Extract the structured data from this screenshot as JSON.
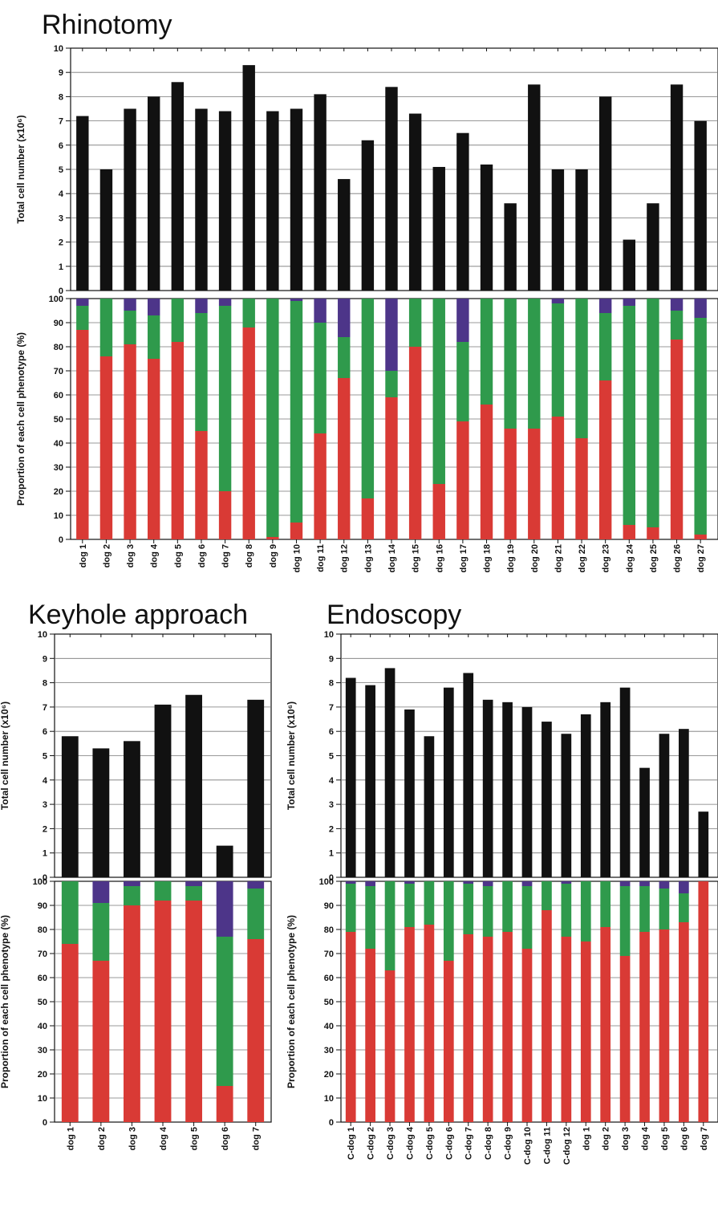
{
  "colors": {
    "total": "#111111",
    "red": "#d93a35",
    "green": "#2f9a4c",
    "purple": "#4d3589",
    "grid": "#777777",
    "axis": "#111111"
  },
  "chart_data": [
    {
      "id": "rhinotomy",
      "title": "Rhinotomy",
      "type": "bar+stacked-bar",
      "categories": [
        "dog 1",
        "dog 2",
        "dog 3",
        "dog 4",
        "dog 5",
        "dog 6",
        "dog 7",
        "dog 8",
        "dog 9",
        "dog 10",
        "dog 11",
        "dog 12",
        "dog 13",
        "dog 14",
        "dog 15",
        "dog 16",
        "dog 17",
        "dog 18",
        "dog 19",
        "dog 20",
        "dog 21",
        "dog 22",
        "dog 23",
        "dog 24",
        "dog 25",
        "dog 26",
        "dog 27"
      ],
      "total": {
        "ylabel": "Total cell number (x10⁶)",
        "ylim": [
          0,
          10
        ],
        "yticks": [
          "0",
          "1",
          "2",
          "3",
          "4",
          "5",
          "6",
          "7",
          "8",
          "9",
          "10"
        ],
        "values": [
          7.2,
          5.0,
          7.5,
          8.0,
          8.6,
          7.5,
          7.4,
          9.3,
          7.4,
          7.5,
          8.1,
          4.6,
          6.2,
          8.4,
          7.3,
          5.1,
          6.5,
          5.2,
          3.6,
          8.5,
          5.0,
          5.0,
          8.0,
          2.1,
          3.6,
          8.5,
          7.0
        ]
      },
      "proportion": {
        "ylabel": "Proportion of each cell phenotype (%)",
        "ylim": [
          0,
          100
        ],
        "yticks": [
          "0",
          "10",
          "20",
          "30",
          "40",
          "50",
          "60",
          "70",
          "80",
          "90",
          "100"
        ],
        "series": [
          {
            "color": "red",
            "values": [
              87,
              76,
              81,
              75,
              82,
              45,
              20,
              88,
              1,
              7,
              44,
              67,
              17,
              59,
              80,
              23,
              49,
              56,
              46,
              46,
              51,
              42,
              66,
              6,
              5,
              83,
              2
            ]
          },
          {
            "color": "green",
            "values": [
              10,
              24,
              14,
              18,
              18,
              49,
              77,
              12,
              99,
              92,
              46,
              17,
              83,
              11,
              20,
              77,
              33,
              44,
              54,
              54,
              47,
              58,
              28,
              91,
              95,
              12,
              90
            ]
          },
          {
            "color": "purple",
            "values": [
              3,
              0,
              5,
              7,
              0,
              6,
              3,
              0,
              0,
              1,
              10,
              16,
              0,
              30,
              0,
              0,
              18,
              0,
              0,
              0,
              2,
              0,
              6,
              3,
              0,
              5,
              8
            ]
          }
        ]
      }
    },
    {
      "id": "keyhole",
      "title": "Keyhole approach",
      "type": "bar+stacked-bar",
      "categories": [
        "dog 1",
        "dog 2",
        "dog 3",
        "dog 4",
        "dog 5",
        "dog 6",
        "dog 7"
      ],
      "total": {
        "ylabel": "Total cell number (x10⁶)",
        "ylim": [
          0,
          10
        ],
        "yticks": [
          "0",
          "1",
          "2",
          "3",
          "4",
          "5",
          "6",
          "7",
          "8",
          "9",
          "10"
        ],
        "values": [
          5.8,
          5.3,
          5.6,
          7.1,
          7.5,
          1.3,
          7.3
        ]
      },
      "proportion": {
        "ylabel": "Proportion of each cell phenotype (%)",
        "ylim": [
          0,
          100
        ],
        "yticks": [
          "0",
          "10",
          "20",
          "30",
          "40",
          "50",
          "60",
          "70",
          "80",
          "90",
          "100"
        ],
        "series": [
          {
            "color": "red",
            "values": [
              74,
              67,
              90,
              92,
              92,
              15,
              76
            ]
          },
          {
            "color": "green",
            "values": [
              26,
              24,
              8,
              8,
              6,
              62,
              21
            ]
          },
          {
            "color": "purple",
            "values": [
              0,
              9,
              2,
              0,
              2,
              23,
              3
            ]
          }
        ]
      }
    },
    {
      "id": "endoscopy",
      "title": "Endoscopy",
      "type": "bar+stacked-bar",
      "categories": [
        "C-dog 1",
        "C-dog 2",
        "C-dog 3",
        "C-dog 4",
        "C-dog 5",
        "C-dog 6",
        "C-dog 7",
        "C-dog 8",
        "C-dog 9",
        "C-dog 10",
        "C-dog 11",
        "C-dog 12",
        "dog 1",
        "dog 2",
        "dog 3",
        "dog 4",
        "dog 5",
        "dog 6",
        "dog 7"
      ],
      "total": {
        "ylabel": "Total cell number (x10⁶)",
        "ylim": [
          0,
          10
        ],
        "yticks": [
          "0",
          "1",
          "2",
          "3",
          "4",
          "5",
          "6",
          "7",
          "8",
          "9",
          "10"
        ],
        "values": [
          8.2,
          7.9,
          8.6,
          6.9,
          5.8,
          7.8,
          8.4,
          7.3,
          7.2,
          7.0,
          6.4,
          5.9,
          6.7,
          7.2,
          7.8,
          4.5,
          5.9,
          6.1,
          2.7
        ]
      },
      "proportion": {
        "ylabel": "Proportion of each cell phenotype (%)",
        "ylim": [
          0,
          100
        ],
        "yticks": [
          "0",
          "10",
          "20",
          "30",
          "40",
          "50",
          "60",
          "70",
          "80",
          "90",
          "100"
        ],
        "series": [
          {
            "color": "red",
            "values": [
              79,
              72,
              63,
              81,
              82,
              67,
              78,
              77,
              79,
              72,
              88,
              77,
              75,
              81,
              69,
              79,
              80,
              83,
              100
            ]
          },
          {
            "color": "green",
            "values": [
              20,
              26,
              37,
              18,
              18,
              33,
              21,
              21,
              21,
              26,
              12,
              22,
              25,
              19,
              29,
              19,
              17,
              12,
              0
            ]
          },
          {
            "color": "purple",
            "values": [
              1,
              2,
              0,
              1,
              0,
              0,
              1,
              2,
              0,
              2,
              0,
              1,
              0,
              0,
              2,
              2,
              3,
              5,
              0
            ]
          }
        ]
      }
    }
  ]
}
